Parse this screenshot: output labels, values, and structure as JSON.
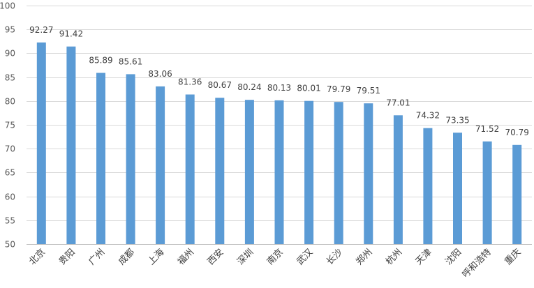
{
  "chart_data": {
    "type": "bar",
    "categories": [
      "北京",
      "贵阳",
      "广州",
      "成都",
      "上海",
      "福州",
      "西安",
      "深圳",
      "南京",
      "武汉",
      "长沙",
      "郑州",
      "杭州",
      "天津",
      "沈阳",
      "呼和浩特",
      "重庆"
    ],
    "values": [
      92.27,
      91.42,
      85.89,
      85.61,
      83.06,
      81.36,
      80.67,
      80.24,
      80.13,
      80.01,
      79.79,
      79.51,
      77.01,
      74.32,
      73.35,
      71.52,
      70.79
    ],
    "data_labels": [
      "92.27",
      "91.42",
      "85.89",
      "85.61",
      "83.06",
      "81.36",
      "80.67",
      "80.24",
      "80.13",
      "80.01",
      "79.79",
      "79.51",
      "77.01",
      "74.32",
      "73.35",
      "71.52",
      "70.79"
    ],
    "yticks": [
      "50",
      "55",
      "60",
      "65",
      "70",
      "75",
      "80",
      "85",
      "90",
      "95",
      "100"
    ],
    "ylim": [
      50,
      100
    ],
    "grid": true,
    "legend": "none",
    "colors": {
      "bar": "#5b9bd5"
    }
  }
}
